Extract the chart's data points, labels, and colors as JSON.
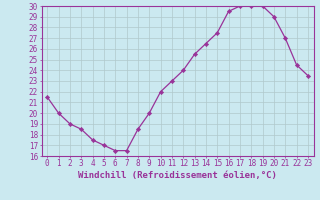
{
  "hours": [
    0,
    1,
    2,
    3,
    4,
    5,
    6,
    7,
    8,
    9,
    10,
    11,
    12,
    13,
    14,
    15,
    16,
    17,
    18,
    19,
    20,
    21,
    22,
    23
  ],
  "values": [
    21.5,
    20.0,
    19.0,
    18.5,
    17.5,
    17.0,
    16.5,
    16.5,
    18.5,
    20.0,
    22.0,
    23.0,
    24.0,
    25.5,
    26.5,
    27.5,
    29.5,
    30.0,
    30.0,
    30.0,
    29.0,
    27.0,
    24.5,
    23.5
  ],
  "line_color": "#993399",
  "marker": "D",
  "marker_size": 2.2,
  "bg_color": "#cbe9f0",
  "grid_color": "#b0c8cc",
  "xlabel": "Windchill (Refroidissement éolien,°C)",
  "ylim": [
    16,
    30
  ],
  "yticks": [
    16,
    17,
    18,
    19,
    20,
    21,
    22,
    23,
    24,
    25,
    26,
    27,
    28,
    29,
    30
  ],
  "xticks": [
    0,
    1,
    2,
    3,
    4,
    5,
    6,
    7,
    8,
    9,
    10,
    11,
    12,
    13,
    14,
    15,
    16,
    17,
    18,
    19,
    20,
    21,
    22,
    23
  ],
  "tick_label_fontsize": 5.5,
  "xlabel_fontsize": 6.5,
  "spine_color": "#993399",
  "line_width": 0.9
}
